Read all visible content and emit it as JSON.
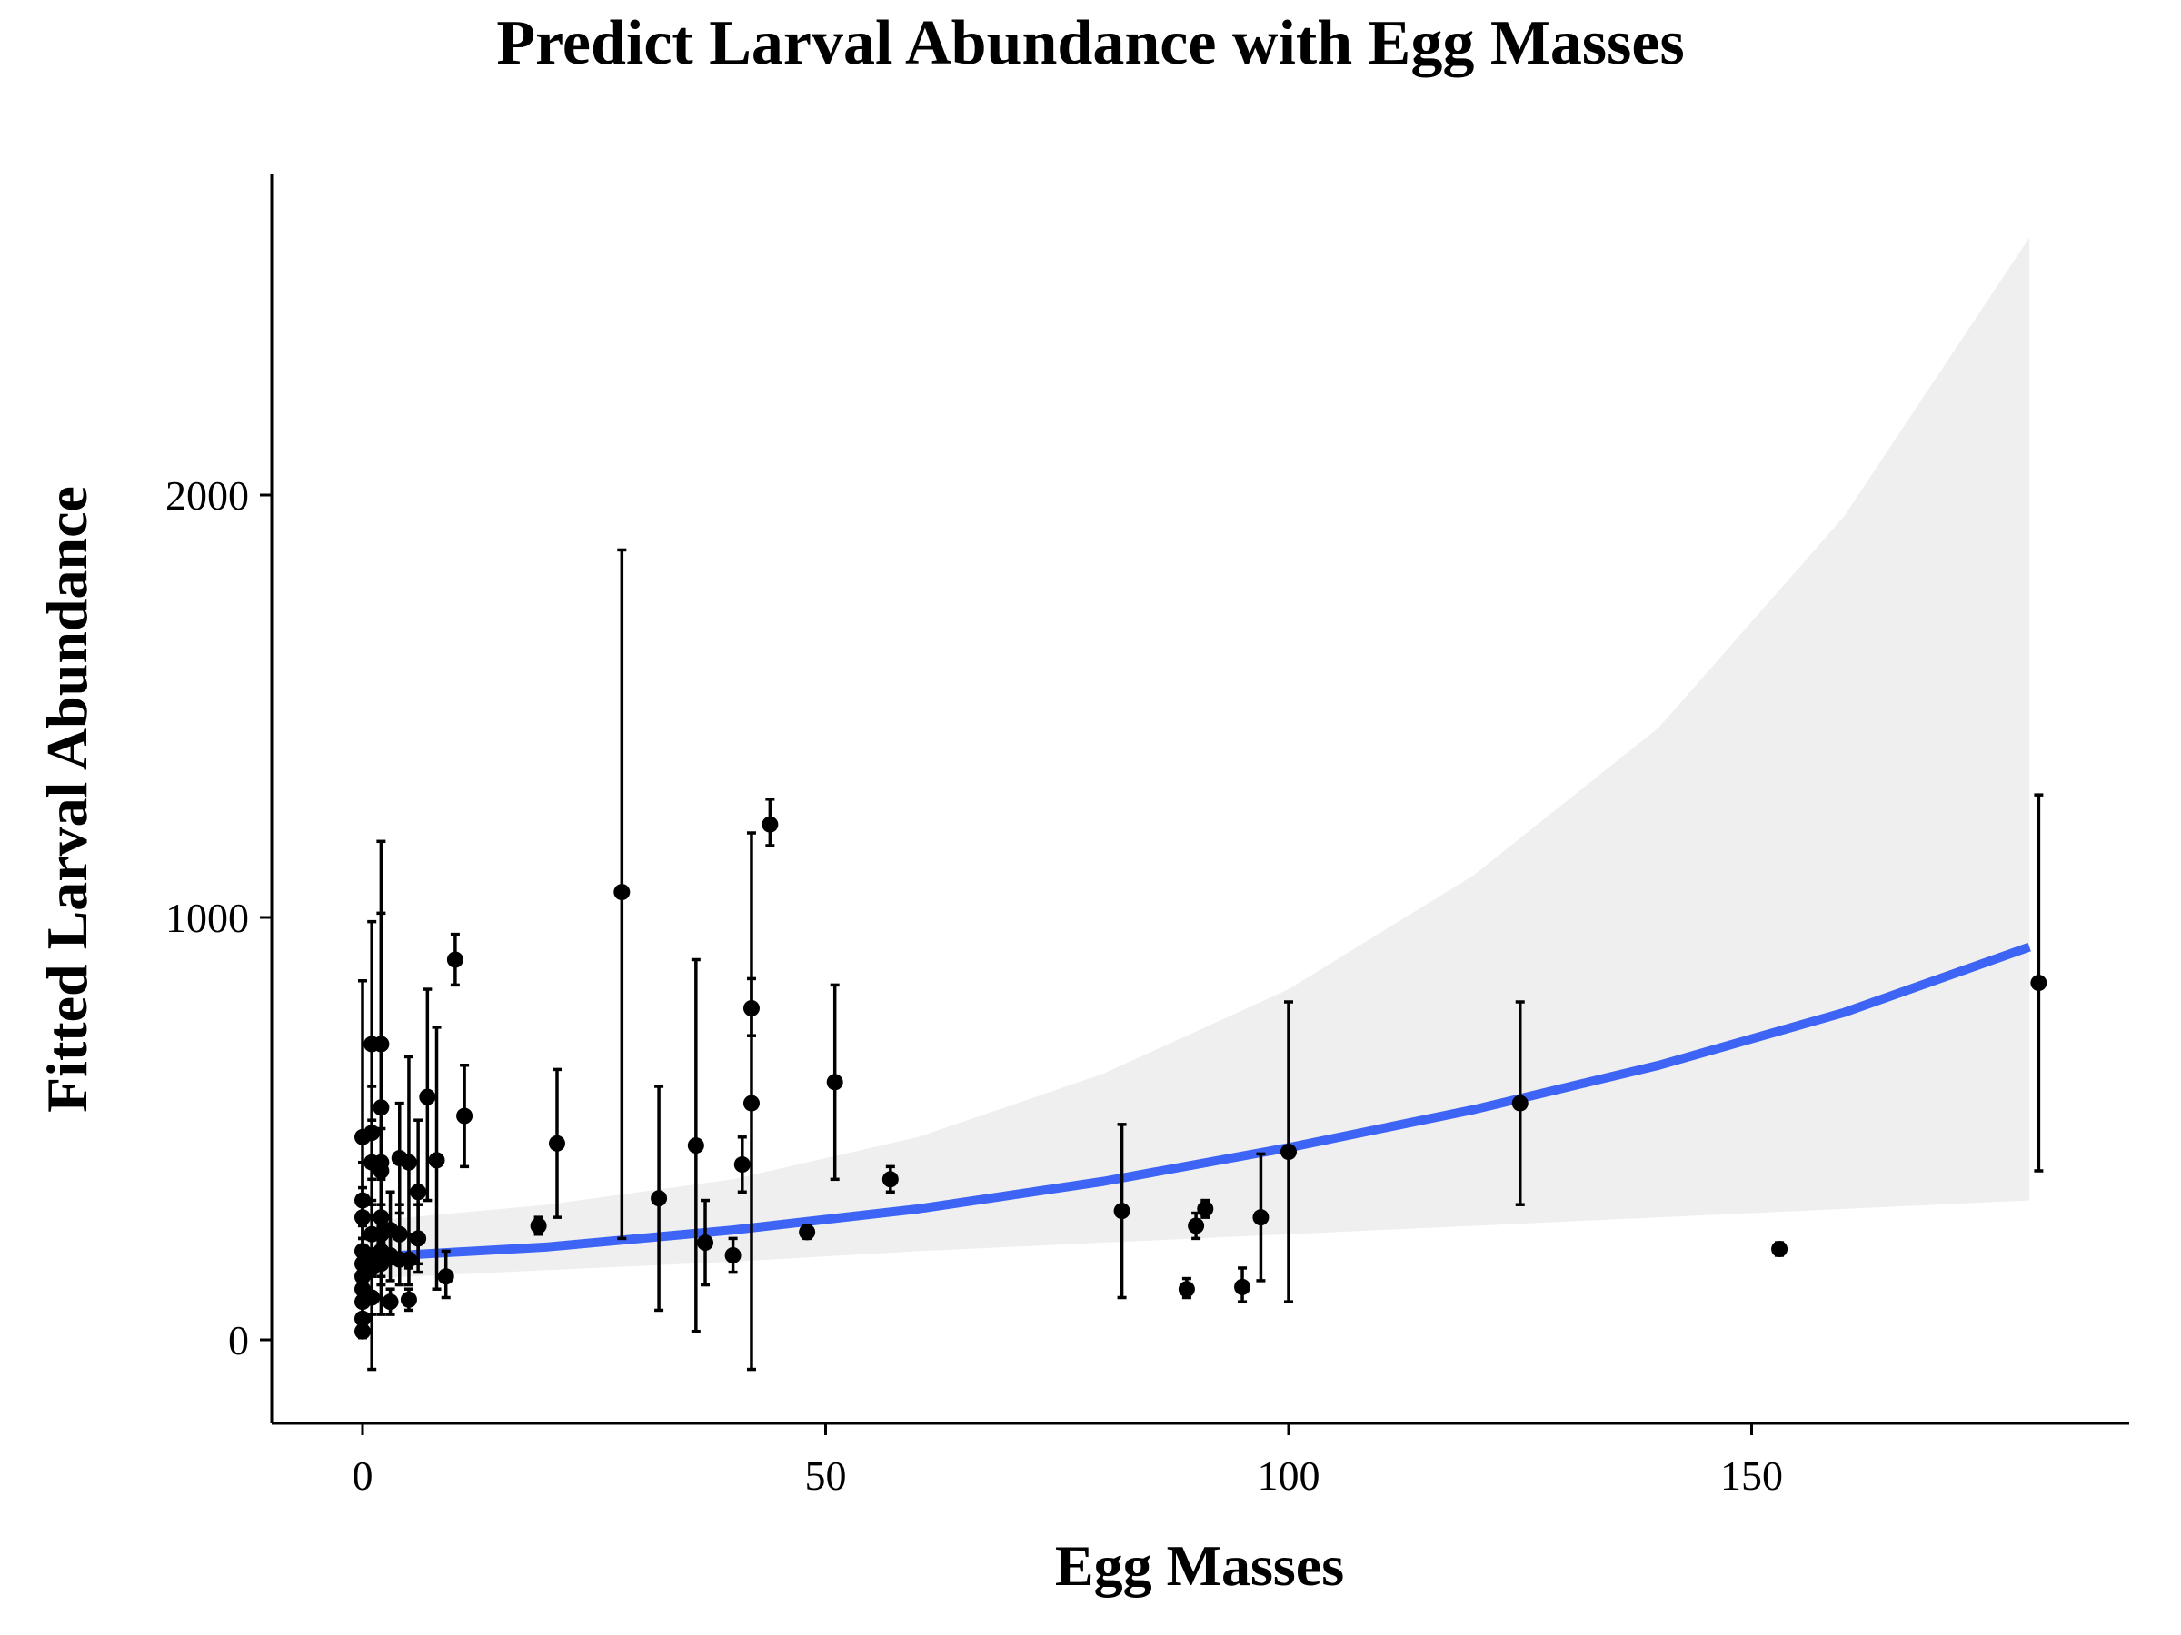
{
  "chart_data": {
    "type": "scatter",
    "title": "Predict Larval Abundance with Egg Masses",
    "xlabel": "Egg Masses",
    "ylabel": "Fitted Larval Abundance",
    "xlim": [
      -10,
      190
    ],
    "ylim": [
      -200,
      2750
    ],
    "x_ticks": [
      0,
      50,
      100,
      150
    ],
    "y_ticks": [
      0,
      1000,
      2000
    ],
    "grid": false,
    "legend": "none",
    "colors": {
      "fit_line": "#3d64f5",
      "ribbon": "#efefef",
      "points": "#000000"
    },
    "fit_line": {
      "x": [
        0,
        20,
        40,
        60,
        80,
        100,
        120,
        140,
        160,
        180
      ],
      "y": [
        195,
        220,
        260,
        310,
        375,
        455,
        545,
        650,
        775,
        930
      ]
    },
    "confidence_band": {
      "x": [
        0,
        20,
        40,
        60,
        80,
        100,
        120,
        140,
        160,
        180
      ],
      "lower": [
        145,
        165,
        185,
        210,
        230,
        250,
        270,
        290,
        310,
        330
      ],
      "upper": [
        280,
        320,
        380,
        480,
        630,
        830,
        1100,
        1450,
        1950,
        2610
      ]
    },
    "points": [
      {
        "x": 0,
        "y": 480,
        "lo": 330,
        "hi": 850
      },
      {
        "x": 0,
        "y": 330,
        "lo": 240,
        "hi": 420
      },
      {
        "x": 0,
        "y": 290,
        "lo": 220,
        "hi": 360
      },
      {
        "x": 0,
        "y": 210,
        "lo": 150,
        "hi": 270
      },
      {
        "x": 0,
        "y": 180,
        "lo": 120,
        "hi": 240
      },
      {
        "x": 0,
        "y": 150,
        "lo": 100,
        "hi": 210
      },
      {
        "x": 0,
        "y": 120,
        "lo": 80,
        "hi": 170
      },
      {
        "x": 0,
        "y": 90,
        "lo": 60,
        "hi": 130
      },
      {
        "x": 0,
        "y": 50,
        "lo": 20,
        "hi": 80
      },
      {
        "x": 0,
        "y": 20,
        "lo": 5,
        "hi": 40
      },
      {
        "x": 1,
        "y": 700,
        "lo": 480,
        "hi": 990
      },
      {
        "x": 1,
        "y": 490,
        "lo": 380,
        "hi": 600
      },
      {
        "x": 1,
        "y": 420,
        "lo": 330,
        "hi": 520
      },
      {
        "x": 1,
        "y": 250,
        "lo": 180,
        "hi": 320
      },
      {
        "x": 1,
        "y": 200,
        "lo": 150,
        "hi": 260
      },
      {
        "x": 1,
        "y": 170,
        "lo": -70,
        "hi": 420
      },
      {
        "x": 1,
        "y": 100,
        "lo": 60,
        "hi": 150
      },
      {
        "x": 2,
        "y": 700,
        "lo": 300,
        "hi": 1180
      },
      {
        "x": 2,
        "y": 550,
        "lo": 320,
        "hi": 1010
      },
      {
        "x": 2,
        "y": 420,
        "lo": 300,
        "hi": 540
      },
      {
        "x": 2,
        "y": 400,
        "lo": 300,
        "hi": 500
      },
      {
        "x": 2,
        "y": 290,
        "lo": 200,
        "hi": 380
      },
      {
        "x": 2,
        "y": 250,
        "lo": 60,
        "hi": 420
      },
      {
        "x": 2,
        "y": 210,
        "lo": 150,
        "hi": 270
      },
      {
        "x": 2,
        "y": 180,
        "lo": 130,
        "hi": 230
      },
      {
        "x": 3,
        "y": 260,
        "lo": 180,
        "hi": 350
      },
      {
        "x": 3,
        "y": 200,
        "lo": 140,
        "hi": 260
      },
      {
        "x": 3,
        "y": 90,
        "lo": 60,
        "hi": 120
      },
      {
        "x": 4,
        "y": 430,
        "lo": 300,
        "hi": 560
      },
      {
        "x": 4,
        "y": 250,
        "lo": 180,
        "hi": 320
      },
      {
        "x": 4,
        "y": 190,
        "lo": 130,
        "hi": 250
      },
      {
        "x": 5,
        "y": 420,
        "lo": 170,
        "hi": 670
      },
      {
        "x": 5,
        "y": 190,
        "lo": 130,
        "hi": 250
      },
      {
        "x": 5,
        "y": 95,
        "lo": 70,
        "hi": 120
      },
      {
        "x": 6,
        "y": 350,
        "lo": 180,
        "hi": 520
      },
      {
        "x": 6,
        "y": 240,
        "lo": 160,
        "hi": 320
      },
      {
        "x": 7,
        "y": 575,
        "lo": 330,
        "hi": 830
      },
      {
        "x": 8,
        "y": 425,
        "lo": 120,
        "hi": 740
      },
      {
        "x": 9,
        "y": 150,
        "lo": 100,
        "hi": 210
      },
      {
        "x": 10,
        "y": 900,
        "lo": 840,
        "hi": 960
      },
      {
        "x": 11,
        "y": 530,
        "lo": 410,
        "hi": 650
      },
      {
        "x": 19,
        "y": 270,
        "lo": 250,
        "hi": 290
      },
      {
        "x": 21,
        "y": 465,
        "lo": 290,
        "hi": 640
      },
      {
        "x": 28,
        "y": 1060,
        "lo": 240,
        "hi": 1870
      },
      {
        "x": 32,
        "y": 335,
        "lo": 70,
        "hi": 600
      },
      {
        "x": 36,
        "y": 460,
        "lo": 20,
        "hi": 900
      },
      {
        "x": 37,
        "y": 230,
        "lo": 130,
        "hi": 330
      },
      {
        "x": 40,
        "y": 200,
        "lo": 160,
        "hi": 240
      },
      {
        "x": 41,
        "y": 415,
        "lo": 350,
        "hi": 480
      },
      {
        "x": 42,
        "y": 785,
        "lo": 720,
        "hi": 855
      },
      {
        "x": 42,
        "y": 560,
        "lo": -70,
        "hi": 1200
      },
      {
        "x": 44,
        "y": 1220,
        "lo": 1170,
        "hi": 1280
      },
      {
        "x": 48,
        "y": 255,
        "lo": 240,
        "hi": 270
      },
      {
        "x": 51,
        "y": 610,
        "lo": 380,
        "hi": 840
      },
      {
        "x": 57,
        "y": 380,
        "lo": 350,
        "hi": 410
      },
      {
        "x": 82,
        "y": 305,
        "lo": 100,
        "hi": 510
      },
      {
        "x": 89,
        "y": 120,
        "lo": 100,
        "hi": 145
      },
      {
        "x": 90,
        "y": 270,
        "lo": 240,
        "hi": 300
      },
      {
        "x": 91,
        "y": 310,
        "lo": 290,
        "hi": 330
      },
      {
        "x": 95,
        "y": 125,
        "lo": 90,
        "hi": 170
      },
      {
        "x": 97,
        "y": 290,
        "lo": 140,
        "hi": 440
      },
      {
        "x": 100,
        "y": 445,
        "lo": 90,
        "hi": 800
      },
      {
        "x": 125,
        "y": 560,
        "lo": 320,
        "hi": 800
      },
      {
        "x": 153,
        "y": 215,
        "lo": 200,
        "hi": 230
      },
      {
        "x": 181,
        "y": 845,
        "lo": 400,
        "hi": 1290
      }
    ]
  }
}
